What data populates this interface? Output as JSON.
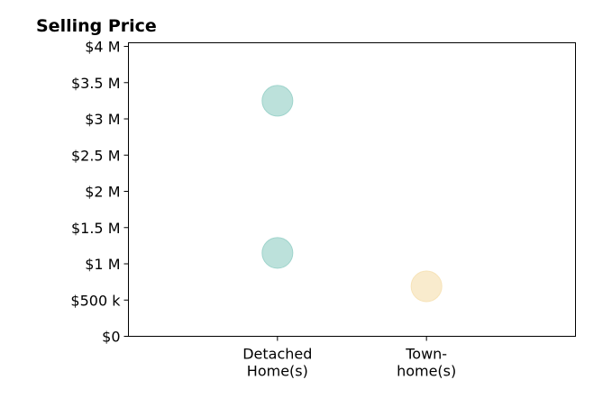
{
  "chart_data": {
    "type": "scatter",
    "title": "Selling Price",
    "xlabel": "",
    "ylabel": "",
    "categories": [
      [
        "Detached",
        "Home(s)"
      ],
      [
        "Town-",
        "home(s)"
      ]
    ],
    "xlim": [
      -1,
      2
    ],
    "ylim": [
      0,
      4050000
    ],
    "yticks": [
      0,
      500000,
      1000000,
      1500000,
      2000000,
      2500000,
      3000000,
      3500000,
      4000000
    ],
    "ytick_labels": [
      "$0",
      "$500 k",
      "$1 M",
      "$1.5 M",
      "$2 M",
      "$2.5 M",
      "$3 M",
      "$3.5 M",
      "$4 M"
    ],
    "grid": false,
    "points": [
      {
        "category_index": 0,
        "value": 3250000,
        "color": "#9fd4cc"
      },
      {
        "category_index": 0,
        "value": 1150000,
        "color": "#9fd4cc"
      },
      {
        "category_index": 1,
        "value": 690000,
        "color": "#f7e3b8"
      }
    ],
    "colors": {
      "detached": "#9fd4cc",
      "townhome": "#f7e3b8"
    }
  }
}
